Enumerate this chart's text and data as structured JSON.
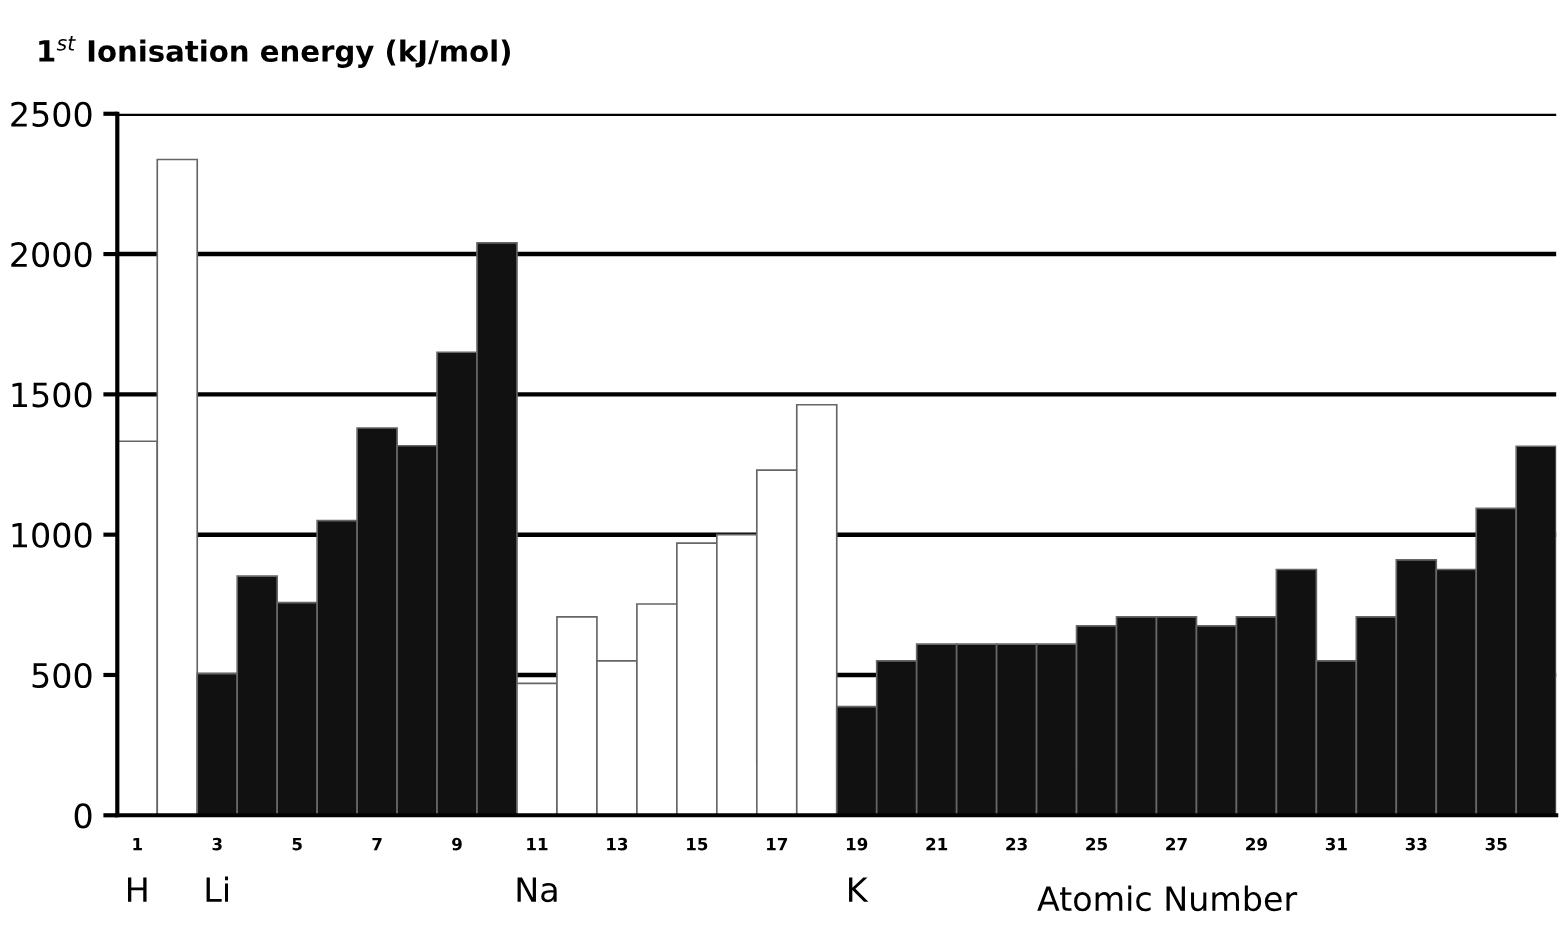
{
  "chart_data": {
    "type": "bar",
    "title": "1$^{st}$ Ionisation energy (kJ/mol)",
    "xlabel": "Atomic Number",
    "categories": [
      "1",
      null,
      "3",
      null,
      "5",
      null,
      "7",
      null,
      "9",
      null,
      "11",
      null,
      "13",
      null,
      "15",
      null,
      "17",
      null,
      "19",
      null,
      "21",
      null,
      "23",
      null,
      "25",
      null,
      "27",
      null,
      "29",
      null,
      "31",
      null,
      "33",
      null,
      "35",
      null
    ],
    "values": [
      1333,
      2337,
      505,
      852,
      758,
      1050,
      1380,
      1317,
      1650,
      2040,
      470,
      707,
      550,
      753,
      970,
      1000,
      1230,
      1463,
      387,
      550,
      610,
      610,
      610,
      610,
      675,
      707,
      707,
      675,
      707,
      876,
      550,
      707,
      910,
      876,
      1094,
      1315
    ],
    "colors": [
      "#ffffff",
      "#ffffff",
      "#111111",
      "#111111",
      "#111111",
      "#111111",
      "#111111",
      "#111111",
      "#111111",
      "#111111",
      "#ffffff",
      "#ffffff",
      "#ffffff",
      "#ffffff",
      "#ffffff",
      "#ffffff",
      "#ffffff",
      "#ffffff",
      "#111111",
      "#111111",
      "#111111",
      "#111111",
      "#111111",
      "#111111",
      "#111111",
      "#111111",
      "#111111",
      "#111111",
      "#111111",
      "#111111",
      "#111111",
      "#111111",
      "#111111",
      "#111111",
      "#111111",
      "#111111"
    ],
    "ylim": [
      0,
      2500
    ],
    "yticks": [
      0,
      500,
      1000,
      1500,
      2000,
      2500
    ],
    "grid": "y",
    "legend": false,
    "annotations": [
      "H",
      "Li",
      "Na",
      "K"
    ]
  }
}
